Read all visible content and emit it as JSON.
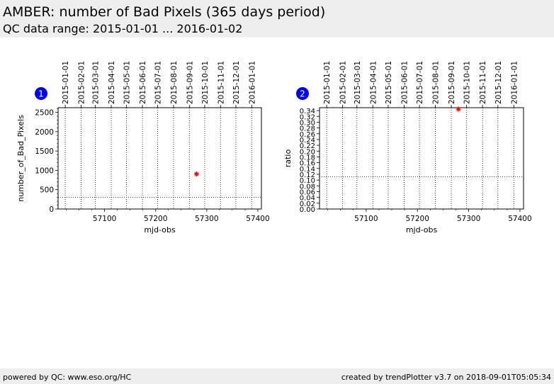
{
  "header": {
    "title": "AMBER: number of Bad Pixels (365 days period)",
    "subtitle": "QC data range: 2015-01-01 ... 2016-01-02"
  },
  "footer": {
    "left": "powered by QC: www.eso.org/HC",
    "right": "created by trendPlotter v3.7 on 2018-09-01T05:05:34"
  },
  "colors": {
    "marker": "#ff0000",
    "badge": "#0000ff",
    "header_bg": "#eeeeee"
  },
  "chart_data": [
    {
      "type": "scatter",
      "badge": "1",
      "xlabel": "mjd-obs",
      "ylabel": "number_of_Bad_Pixels",
      "xlim": [
        57009,
        57407
      ],
      "ylim": [
        0,
        2620
      ],
      "x_ticks": [
        57100,
        57200,
        57300,
        57400
      ],
      "y_ticks": [
        0,
        500,
        1000,
        1500,
        2000,
        2500
      ],
      "top_ticks": [
        {
          "mjd": 57023,
          "label": "2015-01-01"
        },
        {
          "mjd": 57054,
          "label": "2015-02-01"
        },
        {
          "mjd": 57082,
          "label": "2015-03-01"
        },
        {
          "mjd": 57113,
          "label": "2015-04-01"
        },
        {
          "mjd": 57143,
          "label": "2015-05-01"
        },
        {
          "mjd": 57174,
          "label": "2015-06-01"
        },
        {
          "mjd": 57204,
          "label": "2015-07-01"
        },
        {
          "mjd": 57235,
          "label": "2015-08-01"
        },
        {
          "mjd": 57266,
          "label": "2015-09-01"
        },
        {
          "mjd": 57296,
          "label": "2015-10-01"
        },
        {
          "mjd": 57327,
          "label": "2015-11-01"
        },
        {
          "mjd": 57357,
          "label": "2015-12-01"
        },
        {
          "mjd": 57388,
          "label": "2016-01-01"
        }
      ],
      "hline": 300,
      "points": [
        {
          "x": 57280,
          "y": 905
        }
      ]
    },
    {
      "type": "scatter",
      "badge": "2",
      "xlabel": "mjd-obs",
      "ylabel": "ratio",
      "xlim": [
        57009,
        57407
      ],
      "ylim": [
        0,
        0.35
      ],
      "x_ticks": [
        57100,
        57200,
        57300,
        57400
      ],
      "y_ticks": [
        0.0,
        0.02,
        0.04,
        0.06,
        0.08,
        0.1,
        0.12,
        0.14,
        0.16,
        0.18,
        0.2,
        0.22,
        0.24,
        0.26,
        0.28,
        0.3,
        0.32,
        0.34
      ],
      "top_ticks": [
        {
          "mjd": 57023,
          "label": "2015-01-01"
        },
        {
          "mjd": 57054,
          "label": "2015-02-01"
        },
        {
          "mjd": 57082,
          "label": "2015-03-01"
        },
        {
          "mjd": 57113,
          "label": "2015-04-01"
        },
        {
          "mjd": 57143,
          "label": "2015-05-01"
        },
        {
          "mjd": 57174,
          "label": "2015-06-01"
        },
        {
          "mjd": 57204,
          "label": "2015-07-01"
        },
        {
          "mjd": 57235,
          "label": "2015-08-01"
        },
        {
          "mjd": 57266,
          "label": "2015-09-01"
        },
        {
          "mjd": 57296,
          "label": "2015-10-01"
        },
        {
          "mjd": 57327,
          "label": "2015-11-01"
        },
        {
          "mjd": 57357,
          "label": "2015-12-01"
        },
        {
          "mjd": 57388,
          "label": "2016-01-01"
        }
      ],
      "hline": 0.111,
      "points": [
        {
          "x": 57280,
          "y": 0.345
        }
      ]
    }
  ]
}
